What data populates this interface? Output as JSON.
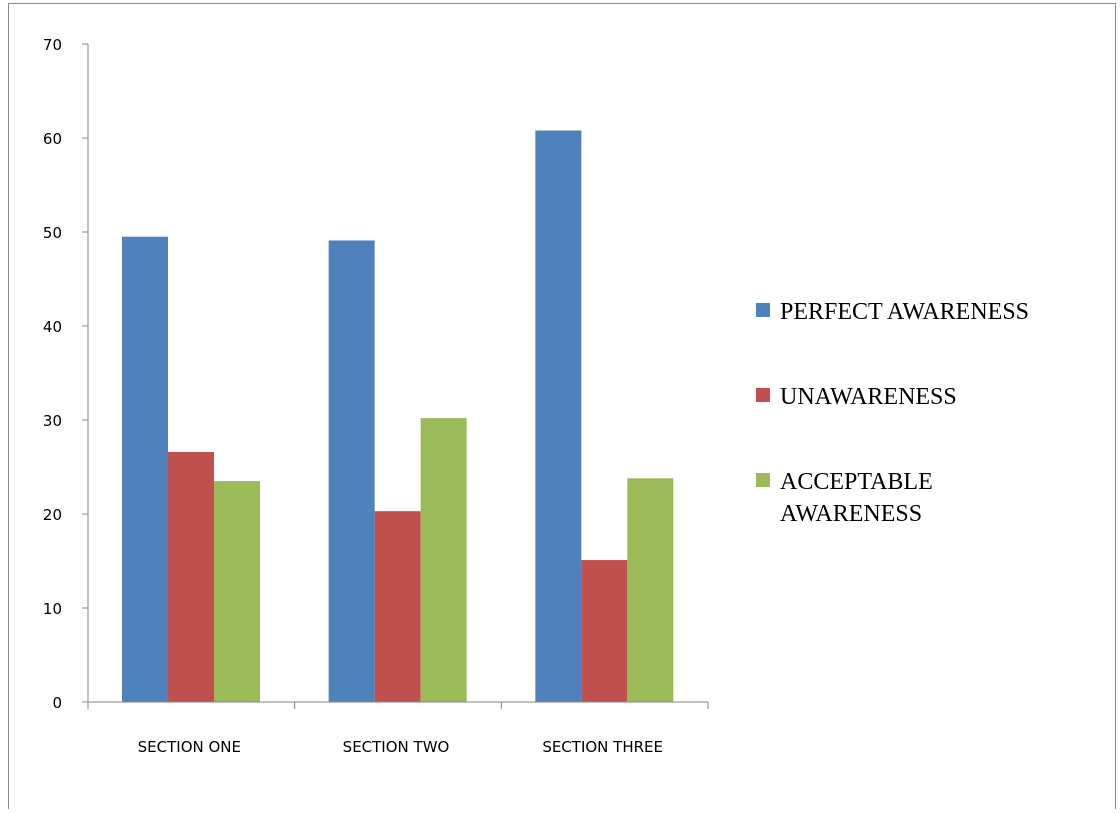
{
  "chart_data": {
    "type": "bar",
    "categories": [
      "SECTION ONE",
      "SECTION TWO",
      "SECTION THREE"
    ],
    "series": [
      {
        "name": "PERFECT AWARENESS",
        "legend_lines": [
          "PERFECT AWARENESS"
        ],
        "color": "#4f81bd",
        "values": [
          49.5,
          49.1,
          60.8
        ]
      },
      {
        "name": "UNAWARENESS",
        "legend_lines": [
          "UNAWARENESS"
        ],
        "color": "#c0504d",
        "values": [
          26.6,
          20.3,
          15.1
        ]
      },
      {
        "name": "ACCEPTABLE AWARENESS",
        "legend_lines": [
          "ACCEPTABLE",
          "AWARENESS"
        ],
        "color": "#9bbb59",
        "values": [
          23.5,
          30.2,
          23.8
        ]
      }
    ],
    "yticks": [
      "0",
      "10",
      "20",
      "30",
      "40",
      "50",
      "60",
      "70"
    ],
    "ylim": [
      0,
      70
    ],
    "title": "",
    "xlabel": "",
    "ylabel": "",
    "grid": false,
    "legend_position": "right"
  }
}
